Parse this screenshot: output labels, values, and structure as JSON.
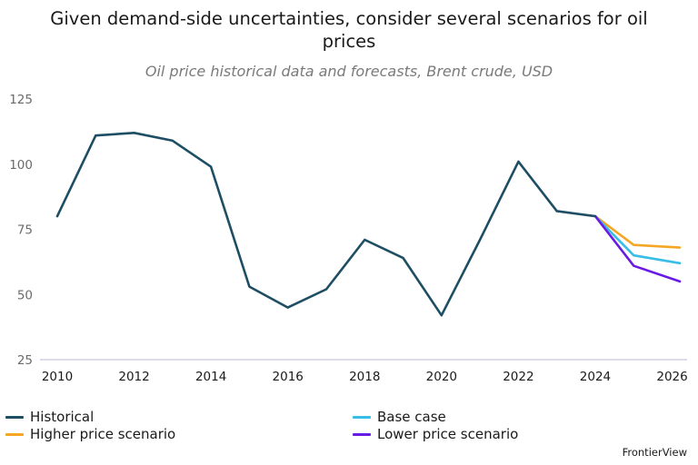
{
  "colors": {
    "historical": "#1d4e63",
    "base_case": "#38bde6",
    "higher": "#f5a623",
    "lower": "#6a1be3",
    "axis": "#c8c8e0"
  },
  "chart_data": {
    "type": "line",
    "title": "Given demand-side uncertainties, consider several scenarios for oil prices",
    "subtitle": "Oil price historical data and forecasts, Brent crude, USD",
    "xlabel": "",
    "ylabel": "",
    "xlim": [
      2010,
      2026.2
    ],
    "ylim": [
      25,
      125
    ],
    "x_ticks": [
      "2010",
      "2012",
      "2014",
      "2016",
      "2018",
      "2020",
      "2022",
      "2024",
      "2026"
    ],
    "y_ticks": [
      "25",
      "50",
      "75",
      "100",
      "125"
    ],
    "grid": false,
    "legend_position": "bottom",
    "series": [
      {
        "name": "Historical",
        "color_key": "historical",
        "x": [
          2010,
          2011,
          2012,
          2013,
          2014,
          2015,
          2016,
          2017,
          2018,
          2019,
          2020,
          2021,
          2022,
          2023,
          2024
        ],
        "values": [
          80,
          111,
          112,
          109,
          99,
          53,
          45,
          52,
          71,
          64,
          42,
          71,
          101,
          82,
          80
        ]
      },
      {
        "name": "Higher price scenario",
        "color_key": "higher",
        "x": [
          2024,
          2025,
          2026.2
        ],
        "values": [
          80,
          69,
          68
        ]
      },
      {
        "name": "Base case",
        "color_key": "base_case",
        "x": [
          2024,
          2025,
          2026.2
        ],
        "values": [
          80,
          65,
          62
        ]
      },
      {
        "name": "Lower price scenario",
        "color_key": "lower",
        "x": [
          2024,
          2025,
          2026.2
        ],
        "values": [
          80,
          61,
          55
        ]
      }
    ]
  },
  "legend": {
    "historical": "Historical",
    "higher": "Higher price scenario",
    "base_case": "Base case",
    "lower": "Lower price scenario"
  },
  "source": "FrontierView"
}
